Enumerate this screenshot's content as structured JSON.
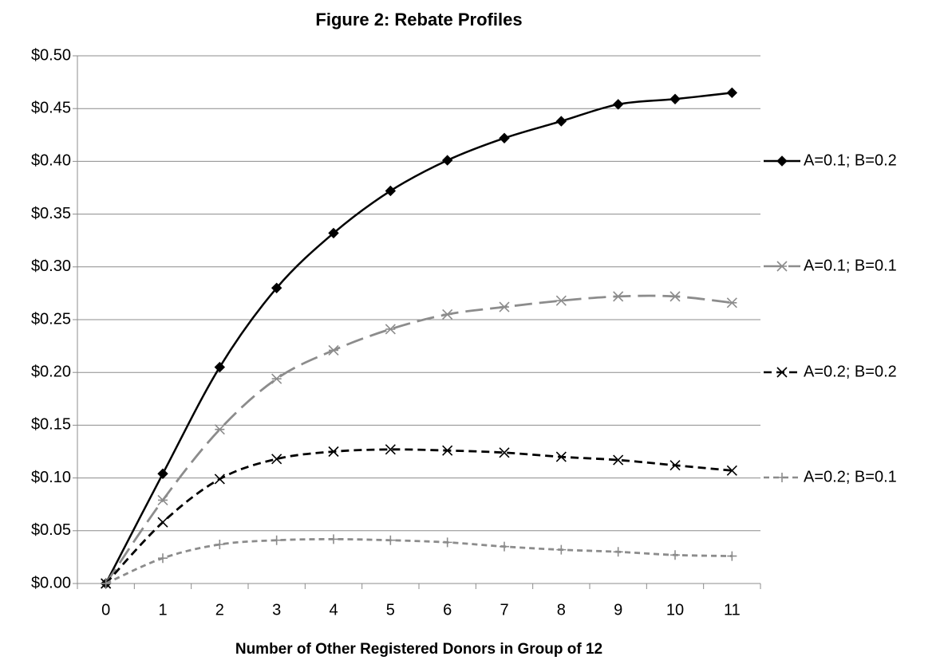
{
  "chart_data": {
    "type": "line",
    "title": "Figure 2: Rebate Profiles",
    "x_label": "Number of Other Registered Donors in Group of 12",
    "categories": [
      "0",
      "1",
      "2",
      "3",
      "4",
      "5",
      "6",
      "7",
      "8",
      "9",
      "10",
      "11"
    ],
    "series": [
      {
        "name": "A=0.1; B=0.2",
        "color": "#000000",
        "line_style": "solid",
        "marker": "diamond",
        "values": [
          0,
          0.104,
          0.205,
          0.28,
          0.332,
          0.372,
          0.401,
          0.422,
          0.438,
          0.454,
          0.459,
          0.465
        ]
      },
      {
        "name": "A=0.1; B=0.1",
        "color": "#8c8c8c",
        "line_style": "long-dash",
        "marker": "asterisk",
        "values": [
          0,
          0.079,
          0.146,
          0.194,
          0.221,
          0.241,
          0.255,
          0.262,
          0.268,
          0.272,
          0.272,
          0.266
        ]
      },
      {
        "name": "A=0.2; B=0.2",
        "color": "#000000",
        "line_style": "dash",
        "marker": "x",
        "values": [
          0,
          0.058,
          0.099,
          0.118,
          0.125,
          0.127,
          0.126,
          0.124,
          0.12,
          0.117,
          0.112,
          0.107
        ]
      },
      {
        "name": "A=0.2; B=0.1",
        "color": "#8c8c8c",
        "line_style": "short-dash",
        "marker": "plus",
        "values": [
          0,
          0.024,
          0.037,
          0.041,
          0.042,
          0.041,
          0.039,
          0.035,
          0.032,
          0.03,
          0.027,
          0.026
        ]
      }
    ],
    "ylim": [
      0,
      0.5
    ],
    "yticks": [
      {
        "value": 0,
        "label": "$0.00"
      },
      {
        "value": 0.05,
        "label": "$0.05"
      },
      {
        "value": 0.1,
        "label": "$0.10"
      },
      {
        "value": 0.15,
        "label": "$0.15"
      },
      {
        "value": 0.2,
        "label": "$0.20"
      },
      {
        "value": 0.25,
        "label": "$0.25"
      },
      {
        "value": 0.3,
        "label": "$0.30"
      },
      {
        "value": 0.35,
        "label": "$0.35"
      },
      {
        "value": 0.4,
        "label": "$0.40"
      },
      {
        "value": 0.45,
        "label": "$0.45"
      },
      {
        "value": 0.5,
        "label": "$0.50"
      }
    ],
    "grid": true,
    "legend": "right"
  }
}
